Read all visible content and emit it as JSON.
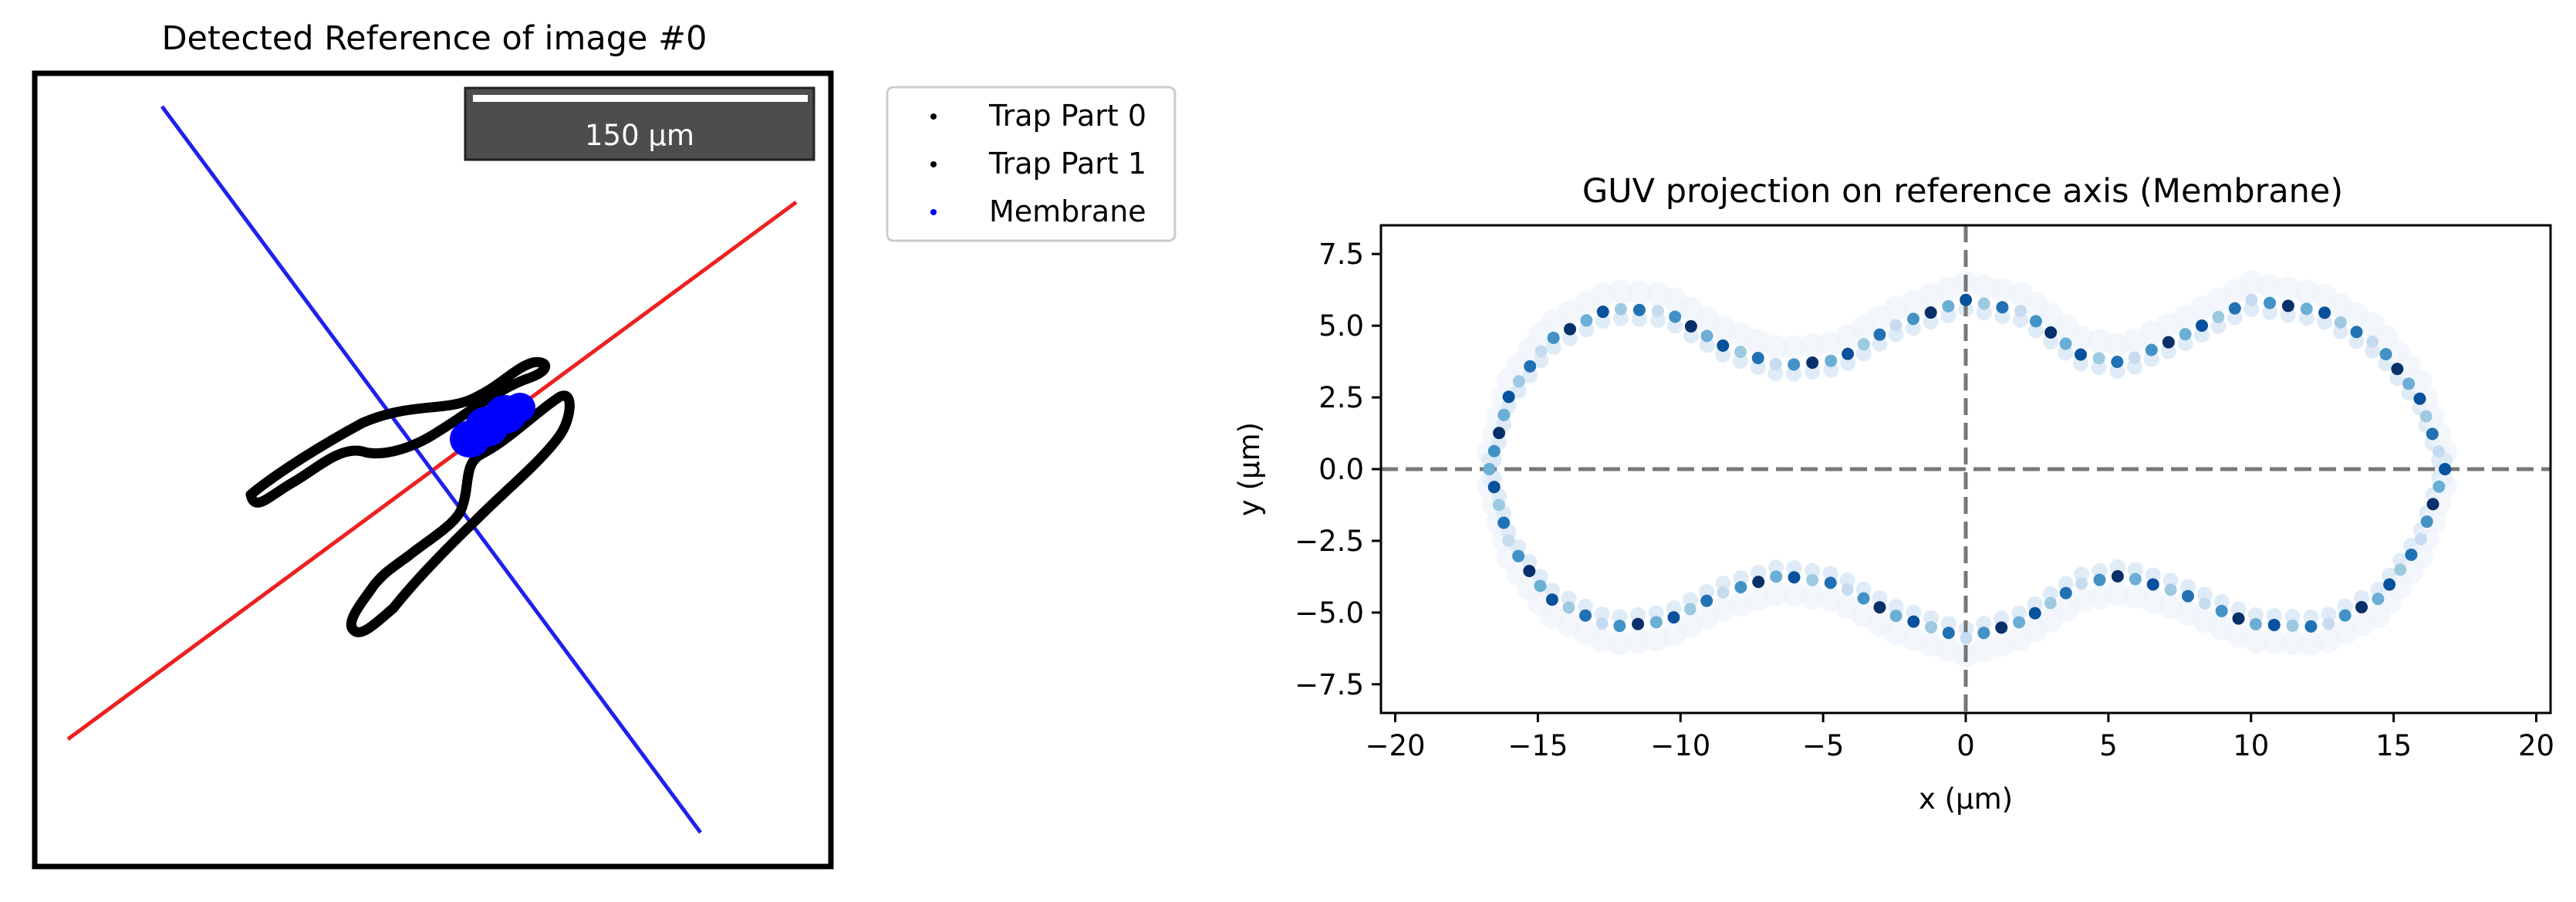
{
  "figure": {
    "left_panel": {
      "title": "Detected Reference of image #0",
      "scalebar_label": "150 µm",
      "legend": [
        {
          "label": "Trap Part 0",
          "color": "#000000"
        },
        {
          "label": "Trap Part 1",
          "color": "#000000"
        },
        {
          "label": "Membrane",
          "color": "#0000ff"
        }
      ],
      "colors": {
        "red_axis": "#ee2020",
        "blue_axis": "#2020ee",
        "trap": "#000000",
        "membrane": "#0000ff",
        "scalebar_bg": "#4d4d4d"
      }
    },
    "right_panel": {
      "title": "GUV projection on reference axis (Membrane)",
      "xlabel": "x (μm)",
      "ylabel": "y (μm)"
    }
  },
  "chart_data": [
    {
      "type": "scatter",
      "title": "Detected Reference of image #0",
      "series": [
        {
          "name": "Trap Part 0",
          "color": "#000000"
        },
        {
          "name": "Trap Part 1",
          "color": "#000000"
        },
        {
          "name": "Membrane",
          "color": "#0000ff"
        }
      ],
      "annotations": [
        "150 µm scale bar",
        "red reference axis",
        "blue perpendicular axis"
      ]
    },
    {
      "type": "scatter",
      "title": "GUV projection on reference axis (Membrane)",
      "xlabel": "x (μm)",
      "ylabel": "y (μm)",
      "xlim": [
        -20.5,
        20.5
      ],
      "ylim": [
        -8.5,
        8.5
      ],
      "xticks": [
        -20,
        -15,
        -10,
        -5,
        0,
        5,
        10,
        15,
        20
      ],
      "xtick_labels": [
        "−20",
        "−15",
        "−10",
        "−5",
        "0",
        "5",
        "10",
        "15",
        "20"
      ],
      "yticks": [
        -7.5,
        -5.0,
        -2.5,
        0.0,
        2.5,
        5.0,
        7.5
      ],
      "ytick_labels": [
        "−7.5",
        "−5.0",
        "−2.5",
        "0.0",
        "2.5",
        "5.0",
        "7.5"
      ],
      "reference_lines": {
        "x": 0,
        "y": 0,
        "style": "dashed",
        "color": "#777777"
      },
      "colormap": "Blues",
      "outline": {
        "top": [
          [
            -16.7,
            0.0
          ],
          [
            -16.0,
            2.6
          ],
          [
            -14.6,
            4.5
          ],
          [
            -12.5,
            5.6
          ],
          [
            -10.5,
            5.5
          ],
          [
            -8.5,
            4.3
          ],
          [
            -6.5,
            3.6
          ],
          [
            -4.5,
            3.8
          ],
          [
            -2.5,
            5.0
          ],
          [
            0.0,
            5.9
          ],
          [
            2.0,
            5.5
          ],
          [
            4.0,
            4.0
          ],
          [
            5.5,
            3.7
          ],
          [
            7.5,
            4.6
          ],
          [
            10.0,
            5.9
          ],
          [
            12.5,
            5.5
          ],
          [
            14.5,
            4.3
          ],
          [
            15.9,
            2.5
          ],
          [
            16.8,
            0.0
          ]
        ],
        "bottom": [
          [
            -16.7,
            0.0
          ],
          [
            -16.0,
            -2.6
          ],
          [
            -14.6,
            -4.5
          ],
          [
            -12.5,
            -5.5
          ],
          [
            -10.5,
            -5.3
          ],
          [
            -8.5,
            -4.3
          ],
          [
            -6.5,
            -3.7
          ],
          [
            -4.5,
            -4.0
          ],
          [
            -2.5,
            -5.1
          ],
          [
            0.0,
            -5.9
          ],
          [
            2.0,
            -5.3
          ],
          [
            4.0,
            -4.0
          ],
          [
            5.5,
            -3.7
          ],
          [
            7.5,
            -4.3
          ],
          [
            10.0,
            -5.4
          ],
          [
            12.5,
            -5.5
          ],
          [
            14.5,
            -4.5
          ],
          [
            15.9,
            -2.6
          ],
          [
            16.8,
            0.0
          ]
        ]
      }
    }
  ]
}
